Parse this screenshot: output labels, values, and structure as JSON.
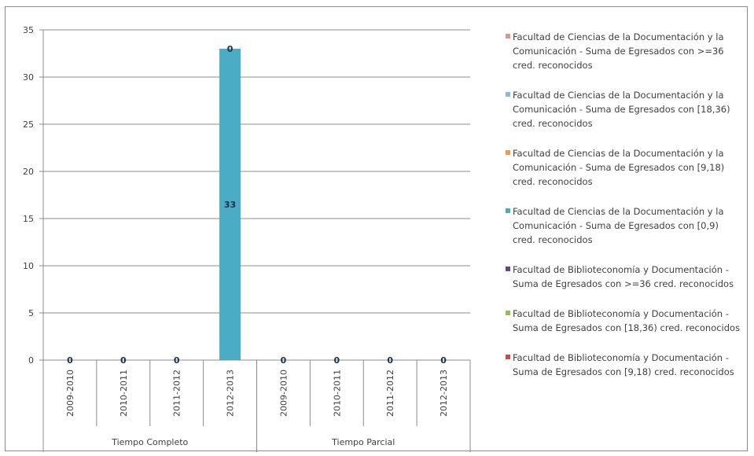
{
  "chart_data": {
    "type": "bar",
    "ylim": [
      0,
      35
    ],
    "yticks": [
      0,
      5,
      10,
      15,
      20,
      25,
      30,
      35
    ],
    "grid": true,
    "legend_position": "right",
    "groups": [
      {
        "label": "Tiempo Completo",
        "categories": [
          "2009-2010",
          "2010-2011",
          "2011-2012",
          "2012-2013"
        ]
      },
      {
        "label": "Tiempo Parcial",
        "categories": [
          "2009-2010",
          "2010-2011",
          "2011-2012",
          "2012-2013"
        ]
      }
    ],
    "categories": [
      "2009-2010",
      "2010-2011",
      "2011-2012",
      "2012-2013",
      "2009-2010",
      "2010-2011",
      "2011-2012",
      "2012-2013"
    ],
    "series": [
      {
        "name": "Facultad de Ciencias de la  Documentación y la Comunicación - Suma de Egresados con >=36 cred. reconocidos",
        "color": "#d99694",
        "values": [
          0,
          0,
          0,
          0,
          0,
          0,
          0,
          0
        ]
      },
      {
        "name": "Facultad de Ciencias de la  Documentación y la Comunicación - Suma de Egresados con [18,36) cred. reconocidos",
        "color": "#95b3d7",
        "values": [
          0,
          0,
          0,
          0,
          0,
          0,
          0,
          0
        ]
      },
      {
        "name": "Facultad de Ciencias de la  Documentación y la Comunicación - Suma de Egresados con [9,18) cred. reconocidos",
        "color": "#f79646",
        "values": [
          0,
          0,
          0,
          0,
          0,
          0,
          0,
          0
        ]
      },
      {
        "name": "Facultad de Ciencias de la  Documentación y la Comunicación - Suma de Egresados con [0,9) cred. reconocidos",
        "color": "#4bacc6",
        "values": [
          0,
          0,
          0,
          33,
          0,
          0,
          0,
          0
        ]
      },
      {
        "name": "Facultad de Biblioteconomía y Documentación - Suma de Egresados con >=36 cred. reconocidos",
        "color": "#604a7b",
        "values": [
          0,
          0,
          0,
          0,
          0,
          0,
          0,
          0
        ]
      },
      {
        "name": "Facultad de Biblioteconomía y Documentación - Suma de Egresados con [18,36) cred. reconocidos",
        "color": "#9bbb59",
        "values": [
          0,
          0,
          0,
          0,
          0,
          0,
          0,
          0
        ]
      },
      {
        "name": "Facultad de Biblioteconomía y Documentación - Suma de Egresados con [9,18) cred. reconocidos",
        "color": "#c0504d",
        "values": [
          0,
          0,
          0,
          0,
          0,
          0,
          0,
          0
        ]
      }
    ],
    "data_labels": [
      {
        "category_index": 0,
        "text": "0"
      },
      {
        "category_index": 1,
        "text": "0"
      },
      {
        "category_index": 2,
        "text": "0"
      },
      {
        "category_index": 3,
        "text": "0",
        "position": "top"
      },
      {
        "category_index": 3,
        "text": "33",
        "position": "center"
      },
      {
        "category_index": 4,
        "text": "0"
      },
      {
        "category_index": 5,
        "text": "0"
      },
      {
        "category_index": 6,
        "text": "0"
      },
      {
        "category_index": 7,
        "text": "0"
      }
    ]
  }
}
